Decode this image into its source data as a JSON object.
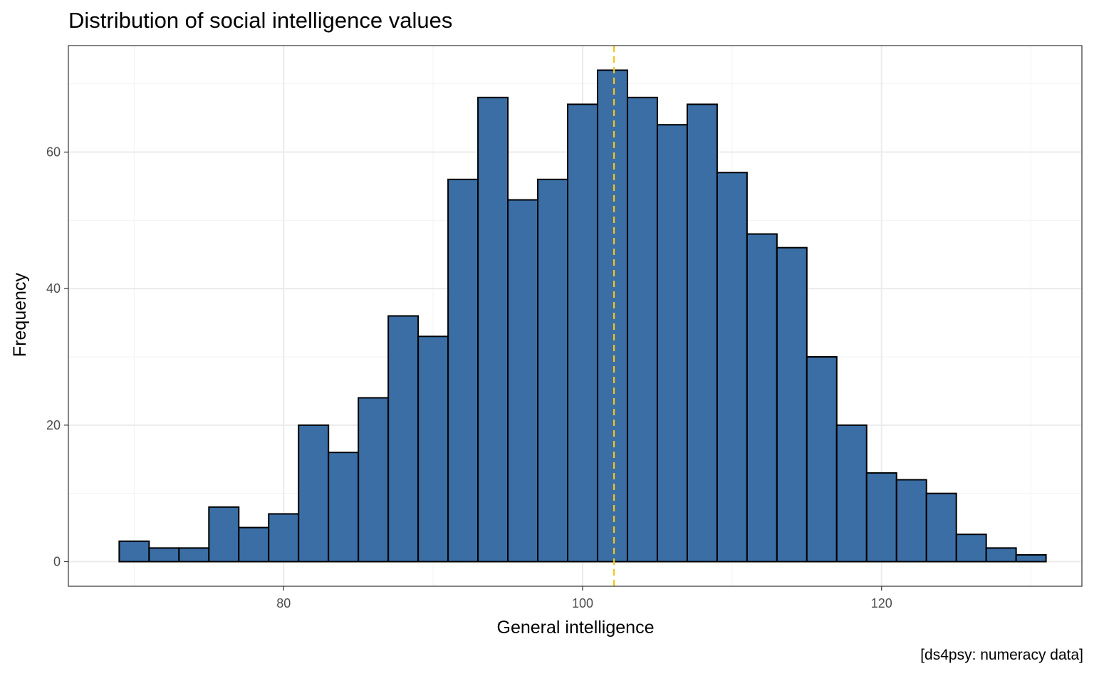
{
  "chart_data": {
    "type": "bar",
    "title": "Distribution of social intelligence values",
    "xlabel": "General intelligence",
    "ylabel": "Frequency",
    "caption": "[ds4psy: numeracy data]",
    "bin_width": 2,
    "bins": [
      {
        "x0": 69,
        "x1": 71,
        "count": 3
      },
      {
        "x0": 71,
        "x1": 73,
        "count": 2
      },
      {
        "x0": 73,
        "x1": 75,
        "count": 2
      },
      {
        "x0": 75,
        "x1": 77,
        "count": 8
      },
      {
        "x0": 77,
        "x1": 79,
        "count": 5
      },
      {
        "x0": 79,
        "x1": 81,
        "count": 7
      },
      {
        "x0": 81,
        "x1": 83,
        "count": 20
      },
      {
        "x0": 83,
        "x1": 85,
        "count": 16
      },
      {
        "x0": 85,
        "x1": 87,
        "count": 24
      },
      {
        "x0": 87,
        "x1": 89,
        "count": 36
      },
      {
        "x0": 89,
        "x1": 91,
        "count": 33
      },
      {
        "x0": 91,
        "x1": 93,
        "count": 56
      },
      {
        "x0": 93,
        "x1": 95,
        "count": 68
      },
      {
        "x0": 95,
        "x1": 97,
        "count": 53
      },
      {
        "x0": 97,
        "x1": 99,
        "count": 56
      },
      {
        "x0": 99,
        "x1": 101,
        "count": 67
      },
      {
        "x0": 101,
        "x1": 103,
        "count": 72
      },
      {
        "x0": 103,
        "x1": 105,
        "count": 68
      },
      {
        "x0": 105,
        "x1": 107,
        "count": 64
      },
      {
        "x0": 107,
        "x1": 109,
        "count": 67
      },
      {
        "x0": 109,
        "x1": 111,
        "count": 57
      },
      {
        "x0": 111,
        "x1": 113,
        "count": 48
      },
      {
        "x0": 113,
        "x1": 115,
        "count": 46
      },
      {
        "x0": 115,
        "x1": 117,
        "count": 30
      },
      {
        "x0": 117,
        "x1": 119,
        "count": 20
      },
      {
        "x0": 119,
        "x1": 121,
        "count": 13
      },
      {
        "x0": 121,
        "x1": 123,
        "count": 12
      },
      {
        "x0": 123,
        "x1": 125,
        "count": 10
      },
      {
        "x0": 125,
        "x1": 127,
        "count": 4
      },
      {
        "x0": 127,
        "x1": 129,
        "count": 2
      },
      {
        "x0": 129,
        "x1": 131,
        "count": 1
      }
    ],
    "mean_line": 102.1,
    "xlim": [
      65.6,
      133.4
    ],
    "ylim": [
      -3.6,
      75.6
    ],
    "x_ticks": [
      80,
      100,
      120
    ],
    "x_tick_labels": [
      "80",
      "100",
      "120"
    ],
    "x_minor_ticks": [
      70,
      90,
      110,
      130
    ],
    "y_ticks": [
      0,
      20,
      40,
      60
    ],
    "y_tick_labels": [
      "0",
      "20",
      "40",
      "60"
    ],
    "y_minor_ticks": [
      10,
      30,
      50,
      70
    ],
    "grid": true,
    "theme": "bw",
    "colors": {
      "bar_fill": "#3a6ea5",
      "bar_outline": "#000000",
      "mean_line": "#f5c518",
      "grid_major": "#ebebeb",
      "grid_minor": "#f3f3f3",
      "panel_border": "#333333"
    }
  }
}
